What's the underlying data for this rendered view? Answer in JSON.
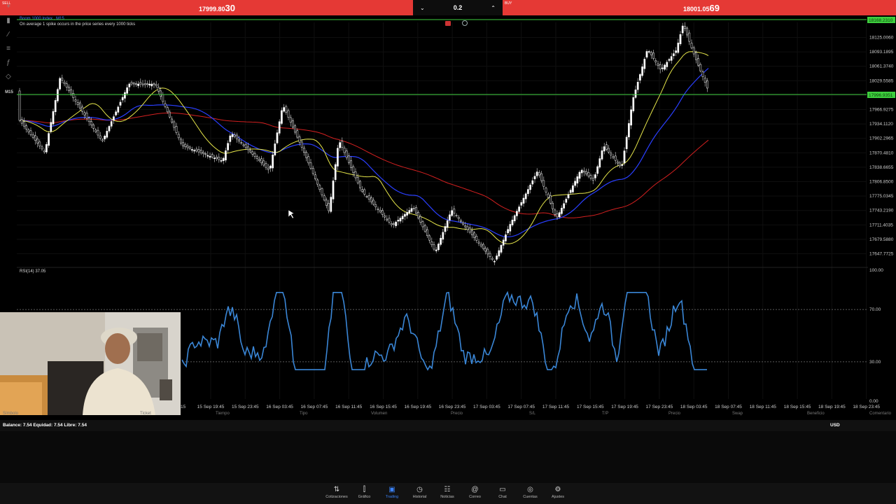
{
  "trade_bar": {
    "sell_label": "SELL",
    "sell_price_main": "17999.",
    "sell_price_small": "80",
    "sell_price_big": "30",
    "buy_label": "BUY",
    "buy_price_main": "18001.",
    "buy_price_small": "05",
    "buy_price_big": "69",
    "lot_value": "0.2",
    "decrease_icon": "chevron-down-icon",
    "increase_icon": "chevron-up-icon"
  },
  "chart": {
    "symbol": "Boom 1000 Index",
    "timeframe": "M15",
    "description": "On average 1 spike occurs in the price series every 1000 ticks",
    "timeframe_badge": "M15",
    "current_price_label": "18168.2310",
    "bid_label": "17996.9351",
    "price_axis": [
      "18125.0060",
      "18093.1895",
      "18061.3740",
      "18029.5585",
      "17996.9351",
      "17966.9275",
      "17934.1120",
      "17902.2965",
      "17870.4810",
      "17838.6655",
      "17806.8500",
      "17775.0345",
      "17743.2190",
      "17711.4035",
      "17679.5880",
      "17647.7725"
    ],
    "time_axis": [
      "15 Sep 19:45",
      "15 Sep 23:45",
      "16 Sep 03:45",
      "16 Sep 07:45",
      "16 Sep 11:45",
      "16 Sep 15:45",
      "16 Sep 19:45",
      "16 Sep 23:45",
      "17 Sep 03:45",
      "17 Sep 07:45",
      "17 Sep 11:45",
      "17 Sep 15:45",
      "17 Sep 19:45",
      "17 Sep 23:45",
      "18 Sep 03:45",
      "18 Sep 07:45",
      "18 Sep 11:45",
      "18 Sep 15:45",
      "18 Sep 19:45",
      "18 Sep 23:45"
    ],
    "time_axis_partial": "15",
    "rsi_label": "RSI(14) 37.05",
    "rsi_axis": [
      "100.00",
      "70.00",
      "30.00",
      "0.00"
    ],
    "colors": {
      "bullish": "#ffffff",
      "bearish": "#ffffff",
      "ma_fast": "#e6e64a",
      "ma_mid": "#2a3fff",
      "ma_slow": "#d32020",
      "rsi": "#3a86d6",
      "level": "#3ecf3e"
    }
  },
  "positions_header": {
    "columns": [
      "Símbolo",
      "Ticket",
      "Tiempo",
      "Tipo",
      "Volumen",
      "Precio",
      "S/L",
      "T/P",
      "Precio",
      "Swap",
      "Beneficio",
      "Comentario"
    ]
  },
  "account": {
    "summary": "Balance: 7.54 Equidad: 7.54 Libre: 7.54",
    "currency": "USD"
  },
  "bottom_nav": [
    {
      "label": "Cotizaciones",
      "icon": "arrows-swap-icon"
    },
    {
      "label": "Gráfico",
      "icon": "candles-icon"
    },
    {
      "label": "Trading",
      "icon": "trading-chart-icon",
      "active": true
    },
    {
      "label": "Historial",
      "icon": "history-clock-icon"
    },
    {
      "label": "Noticias",
      "icon": "newspaper-icon"
    },
    {
      "label": "Correo",
      "icon": "at-sign-icon"
    },
    {
      "label": "Chat",
      "icon": "chat-bubble-icon"
    },
    {
      "label": "Cuentas",
      "icon": "account-icon"
    },
    {
      "label": "Ajustes",
      "icon": "gear-icon"
    }
  ]
}
